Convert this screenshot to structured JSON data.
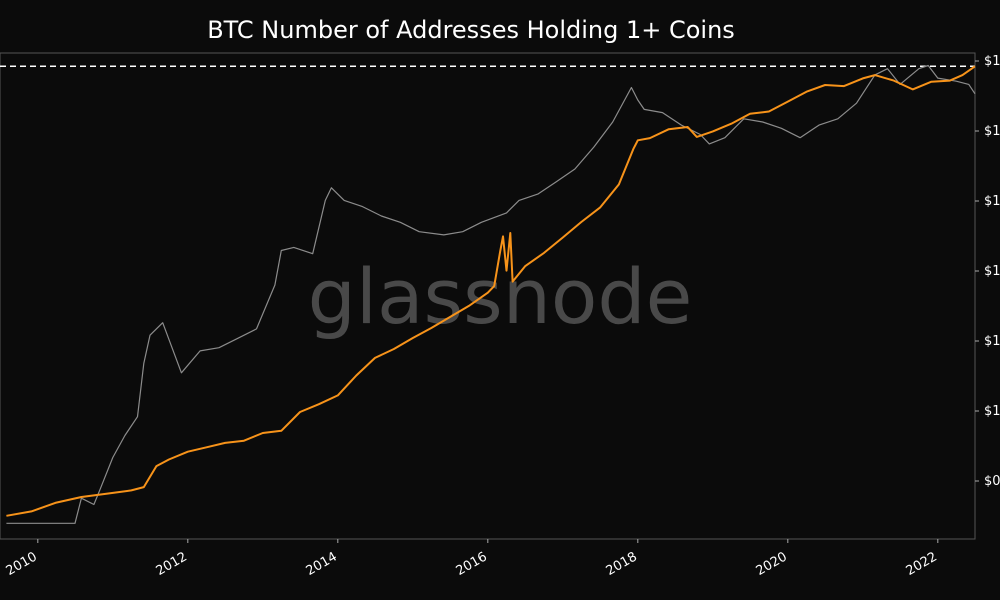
{
  "chart_data": {
    "type": "line",
    "title": "BTC Number of Addresses Holding 1+ Coins",
    "xlabel": "",
    "ylabel_right": "",
    "x_ticks": [
      "2010",
      "2012",
      "2014",
      "2016",
      "2018",
      "2020",
      "2022"
    ],
    "right_ticks": [
      "$1",
      "$1",
      "$1",
      "$1",
      "$1",
      "$1",
      "$0"
    ],
    "watermark": "glassnode",
    "grid": false,
    "series": [
      {
        "color": "#f7931a",
        "axis": "left",
        "points": [
          [
            "2009-08-01",
            55
          ],
          [
            "2009-12-01",
            75
          ],
          [
            "2010-04-01",
            115
          ],
          [
            "2010-08-01",
            140
          ],
          [
            "2010-12-01",
            155
          ],
          [
            "2011-04-01",
            170
          ],
          [
            "2011-06-01",
            185
          ],
          [
            "2011-08-01",
            280
          ],
          [
            "2011-10-01",
            310
          ],
          [
            "2012-01-01",
            345
          ],
          [
            "2012-04-01",
            365
          ],
          [
            "2012-07-01",
            385
          ],
          [
            "2012-10-01",
            395
          ],
          [
            "2013-01-01",
            430
          ],
          [
            "2013-04-01",
            440
          ],
          [
            "2013-07-01",
            525
          ],
          [
            "2013-10-01",
            560
          ],
          [
            "2014-01-01",
            600
          ],
          [
            "2014-04-01",
            690
          ],
          [
            "2014-07-01",
            770
          ],
          [
            "2014-10-01",
            810
          ],
          [
            "2015-01-01",
            860
          ],
          [
            "2015-04-01",
            905
          ],
          [
            "2015-07-01",
            955
          ],
          [
            "2015-10-01",
            1005
          ],
          [
            "2016-01-01",
            1065
          ],
          [
            "2016-02-01",
            1095
          ],
          [
            "2016-03-01",
            1250
          ],
          [
            "2016-03-15",
            1320
          ],
          [
            "2016-04-01",
            1165
          ],
          [
            "2016-04-20",
            1335
          ],
          [
            "2016-05-01",
            1115
          ],
          [
            "2016-07-01",
            1185
          ],
          [
            "2016-10-01",
            1245
          ],
          [
            "2017-01-01",
            1315
          ],
          [
            "2017-04-01",
            1385
          ],
          [
            "2017-07-01",
            1450
          ],
          [
            "2017-10-01",
            1555
          ],
          [
            "2017-12-10",
            1715
          ],
          [
            "2018-01-01",
            1755
          ],
          [
            "2018-03-01",
            1765
          ],
          [
            "2018-06-01",
            1805
          ],
          [
            "2018-09-01",
            1815
          ],
          [
            "2018-10-15",
            1770
          ],
          [
            "2019-01-01",
            1795
          ],
          [
            "2019-04-01",
            1830
          ],
          [
            "2019-07-01",
            1875
          ],
          [
            "2019-10-01",
            1885
          ],
          [
            "2020-01-01",
            1930
          ],
          [
            "2020-04-01",
            1975
          ],
          [
            "2020-07-01",
            2005
          ],
          [
            "2020-10-01",
            2000
          ],
          [
            "2021-01-01",
            2035
          ],
          [
            "2021-03-01",
            2050
          ],
          [
            "2021-06-01",
            2025
          ],
          [
            "2021-09-01",
            1985
          ],
          [
            "2021-12-01",
            2020
          ],
          [
            "2022-03-01",
            2025
          ],
          [
            "2022-05-01",
            2050
          ],
          [
            "2022-07-01",
            2090
          ]
        ]
      },
      {
        "color": "#8c8c8c",
        "axis": "right",
        "points": [
          [
            "2009-08-01",
            0
          ],
          [
            "2010-07-01",
            0
          ],
          [
            "2010-08-01",
            80
          ],
          [
            "2010-10-01",
            60
          ],
          [
            "2010-11-01",
            110
          ],
          [
            "2011-01-01",
            210
          ],
          [
            "2011-03-01",
            280
          ],
          [
            "2011-05-01",
            340
          ],
          [
            "2011-06-01",
            510
          ],
          [
            "2011-07-01",
            600
          ],
          [
            "2011-09-01",
            640
          ],
          [
            "2011-12-01",
            480
          ],
          [
            "2012-03-01",
            550
          ],
          [
            "2012-06-01",
            560
          ],
          [
            "2012-09-01",
            590
          ],
          [
            "2012-12-01",
            620
          ],
          [
            "2013-03-01",
            760
          ],
          [
            "2013-04-01",
            870
          ],
          [
            "2013-06-01",
            880
          ],
          [
            "2013-09-01",
            860
          ],
          [
            "2013-11-01",
            1030
          ],
          [
            "2013-12-01",
            1070
          ],
          [
            "2014-02-01",
            1030
          ],
          [
            "2014-05-01",
            1010
          ],
          [
            "2014-08-01",
            980
          ],
          [
            "2014-11-01",
            960
          ],
          [
            "2015-02-01",
            930
          ],
          [
            "2015-06-01",
            920
          ],
          [
            "2015-09-01",
            930
          ],
          [
            "2015-12-01",
            960
          ],
          [
            "2016-04-01",
            990
          ],
          [
            "2016-06-01",
            1030
          ],
          [
            "2016-09-01",
            1050
          ],
          [
            "2016-12-01",
            1090
          ],
          [
            "2017-03-01",
            1130
          ],
          [
            "2017-06-01",
            1200
          ],
          [
            "2017-09-01",
            1280
          ],
          [
            "2017-12-01",
            1390
          ],
          [
            "2018-01-01",
            1350
          ],
          [
            "2018-02-01",
            1320
          ],
          [
            "2018-05-01",
            1310
          ],
          [
            "2018-08-01",
            1270
          ],
          [
            "2018-11-01",
            1240
          ],
          [
            "2018-12-15",
            1210
          ],
          [
            "2019-03-01",
            1230
          ],
          [
            "2019-06-01",
            1290
          ],
          [
            "2019-09-01",
            1280
          ],
          [
            "2019-12-01",
            1260
          ],
          [
            "2020-03-01",
            1230
          ],
          [
            "2020-06-01",
            1270
          ],
          [
            "2020-09-01",
            1290
          ],
          [
            "2020-12-01",
            1340
          ],
          [
            "2021-03-01",
            1430
          ],
          [
            "2021-05-01",
            1450
          ],
          [
            "2021-07-01",
            1400
          ],
          [
            "2021-10-01",
            1450
          ],
          [
            "2021-11-15",
            1460
          ],
          [
            "2022-01-01",
            1420
          ],
          [
            "2022-04-01",
            1410
          ],
          [
            "2022-06-01",
            1400
          ],
          [
            "2022-07-01",
            1370
          ]
        ]
      }
    ],
    "reference_line": {
      "style": "dashed",
      "color": "#ffffff",
      "value": 2090,
      "axis": "left"
    },
    "x_range": [
      "2009-07-01",
      "2022-07-01"
    ],
    "left_range": [
      -50,
      2150
    ],
    "right_range": [
      -50,
      1500
    ]
  }
}
